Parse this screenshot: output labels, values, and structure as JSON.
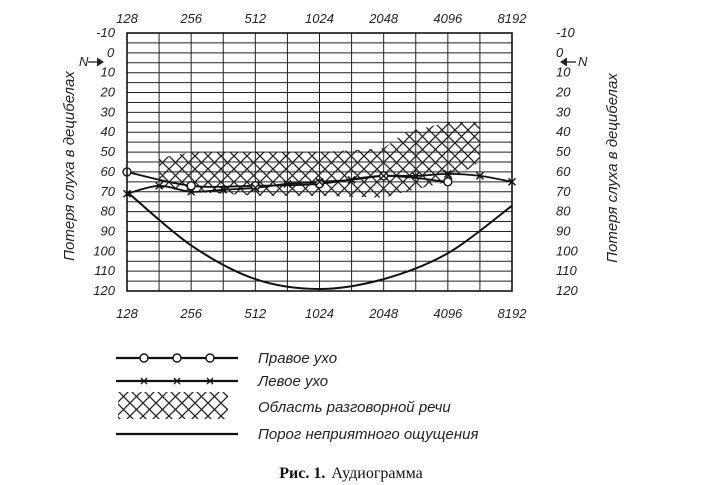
{
  "chart_data": {
    "type": "line",
    "x_ticks": [
      "128",
      "256",
      "512",
      "1024",
      "2048",
      "4096",
      "8192"
    ],
    "y_ticks": [
      "-10",
      "0",
      "10",
      "20",
      "30",
      "40",
      "50",
      "60",
      "70",
      "80",
      "90",
      "100",
      "110",
      "120"
    ],
    "y_marker_left": "N",
    "y_marker_right": "N",
    "ylabel": "Потеря слуха в децибелах",
    "ylim": [
      -10,
      120
    ],
    "y_inverted": true,
    "x_scale": "log2",
    "grid": true,
    "series": [
      {
        "name": "Правое ухо",
        "marker": "circle",
        "x": [
          128,
          256,
          512,
          1024,
          2048,
          4096
        ],
        "y": [
          60,
          67,
          67,
          66,
          62,
          65
        ]
      },
      {
        "name": "Левое ухо",
        "marker": "x",
        "x": [
          128,
          181,
          256,
          362,
          512,
          724,
          1024,
          1448,
          2048,
          2896,
          4096,
          5793,
          8192
        ],
        "y": [
          71,
          67,
          70,
          69,
          68,
          66,
          65,
          64,
          62,
          62,
          61,
          62,
          65
        ]
      },
      {
        "name": "Порог неприятного ощущения",
        "marker": "none",
        "x": [
          128,
          256,
          512,
          1024,
          2048,
          4096,
          8192
        ],
        "y": [
          70,
          97,
          114,
          119,
          114,
          101,
          77
        ]
      }
    ],
    "area": {
      "name": "Область разговорной речи",
      "x": [
        181,
        256,
        512,
        1024,
        2048,
        2600,
        4096,
        5793
      ],
      "top": [
        53,
        50,
        50,
        50,
        48,
        40,
        35,
        35
      ],
      "bottom": [
        68,
        70,
        72,
        72,
        73,
        70,
        65,
        55
      ]
    }
  },
  "legend": {
    "right_ear": "Правое ухо",
    "left_ear": "Левое ухо",
    "speech_area": "Область разговорной речи",
    "discomfort": "Порог неприятного ощущения"
  },
  "caption": {
    "label": "Рис. 1.",
    "text": "Аудиограмма"
  }
}
